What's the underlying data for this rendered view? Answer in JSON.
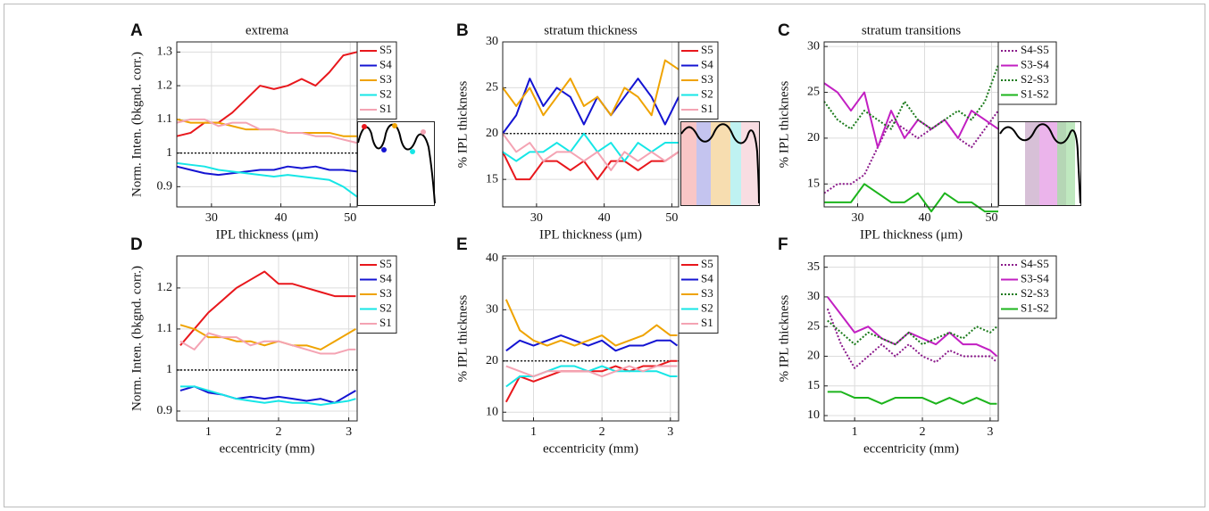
{
  "chart_data": [
    {
      "type": "line",
      "label": "A",
      "title": "extrema",
      "xlabel": "IPL thickness (μm)",
      "ylabel": "Norm. Inten. (bkgnd. corr.)",
      "x": [
        25,
        27,
        29,
        31,
        33,
        35,
        37,
        39,
        41,
        43,
        45,
        47,
        49,
        51
      ],
      "xlim": [
        25,
        51
      ],
      "xticks": [
        30,
        40,
        50
      ],
      "ylim": [
        0.84,
        1.33
      ],
      "yticks": [
        0.9,
        1,
        1.1,
        1.2,
        1.3
      ],
      "grid": true,
      "reference_line": 1,
      "legend": "right-outside",
      "series": [
        {
          "name": "S5",
          "color": "#e8171c",
          "values": [
            1.05,
            1.06,
            1.09,
            1.09,
            1.12,
            1.16,
            1.2,
            1.19,
            1.2,
            1.22,
            1.2,
            1.24,
            1.29,
            1.3
          ]
        },
        {
          "name": "S4",
          "color": "#1414d2",
          "values": [
            0.96,
            0.95,
            0.94,
            0.935,
            0.94,
            0.945,
            0.95,
            0.95,
            0.96,
            0.955,
            0.96,
            0.95,
            0.95,
            0.945
          ]
        },
        {
          "name": "S3",
          "color": "#efa300",
          "values": [
            1.1,
            1.09,
            1.09,
            1.09,
            1.08,
            1.07,
            1.07,
            1.07,
            1.06,
            1.06,
            1.06,
            1.06,
            1.05,
            1.05
          ]
        },
        {
          "name": "S2",
          "color": "#16e6e6",
          "values": [
            0.97,
            0.965,
            0.96,
            0.95,
            0.945,
            0.94,
            0.935,
            0.93,
            0.935,
            0.93,
            0.925,
            0.92,
            0.9,
            0.87
          ]
        },
        {
          "name": "S1",
          "color": "#f4a3b3",
          "values": [
            1.09,
            1.1,
            1.1,
            1.08,
            1.09,
            1.09,
            1.07,
            1.07,
            1.06,
            1.06,
            1.05,
            1.05,
            1.04,
            1.03
          ]
        }
      ]
    },
    {
      "type": "line",
      "label": "B",
      "title": "stratum thickness",
      "xlabel": "IPL thickness (μm)",
      "ylabel": "% IPL thickness",
      "x": [
        25,
        27,
        29,
        31,
        33,
        35,
        37,
        39,
        41,
        43,
        45,
        47,
        49,
        51
      ],
      "xlim": [
        25,
        51
      ],
      "xticks": [
        30,
        40,
        50
      ],
      "ylim": [
        12,
        30
      ],
      "yticks": [
        15,
        20,
        25,
        30
      ],
      "grid": true,
      "reference_line": 20,
      "legend": "right-outside",
      "series": [
        {
          "name": "S5",
          "color": "#e8171c",
          "values": [
            18,
            15,
            15,
            17,
            17,
            16,
            17,
            15,
            17,
            17,
            16,
            17,
            17,
            18
          ]
        },
        {
          "name": "S4",
          "color": "#1414d2",
          "values": [
            20,
            22,
            26,
            23,
            25,
            24,
            21,
            24,
            22,
            24,
            26,
            24,
            21,
            24
          ]
        },
        {
          "name": "S3",
          "color": "#efa300",
          "values": [
            25,
            23,
            25,
            22,
            24,
            26,
            23,
            24,
            22,
            25,
            24,
            22,
            28,
            27
          ]
        },
        {
          "name": "S2",
          "color": "#16e6e6",
          "values": [
            18,
            17,
            18,
            18,
            19,
            18,
            20,
            18,
            19,
            17,
            19,
            18,
            19,
            19
          ]
        },
        {
          "name": "S1",
          "color": "#f4a3b3",
          "values": [
            20,
            18,
            19,
            17,
            18,
            18,
            17,
            18,
            16,
            18,
            17,
            18,
            17,
            18
          ]
        }
      ]
    },
    {
      "type": "line",
      "label": "C",
      "title": "stratum transitions",
      "xlabel": "IPL thickness (μm)",
      "ylabel": "% IPL thickness",
      "x": [
        25,
        27,
        29,
        31,
        33,
        35,
        37,
        39,
        41,
        43,
        45,
        47,
        49,
        51
      ],
      "xlim": [
        25,
        51
      ],
      "xticks": [
        30,
        40,
        50
      ],
      "ylim": [
        12.5,
        30.5
      ],
      "yticks": [
        15,
        20,
        25,
        30
      ],
      "grid": true,
      "legend": "right-outside",
      "series": [
        {
          "name": "S4-S5",
          "color": "#8b1a8b",
          "style": "dotted",
          "values": [
            14,
            15,
            15,
            16,
            19,
            22,
            21,
            20,
            21,
            22,
            20,
            19,
            21,
            23
          ]
        },
        {
          "name": "S3-S4",
          "color": "#c21fc2",
          "values": [
            26,
            25,
            23,
            25,
            19,
            23,
            20,
            22,
            21,
            22,
            20,
            23,
            22,
            21
          ]
        },
        {
          "name": "S2-S3",
          "color": "#1a7a1a",
          "style": "dotted",
          "values": [
            24,
            22,
            21,
            23,
            22,
            21,
            24,
            22,
            21,
            22,
            23,
            22,
            24,
            28
          ]
        },
        {
          "name": "S1-S2",
          "color": "#1cb41c",
          "values": [
            13,
            13,
            13,
            15,
            14,
            13,
            13,
            14,
            12,
            14,
            13,
            13,
            12,
            12
          ]
        }
      ]
    },
    {
      "type": "line",
      "label": "D",
      "xlabel": "eccentricity (mm)",
      "ylabel": "Norm. Inten. (bkgnd. corr.)",
      "x": [
        0.6,
        0.8,
        1,
        1.2,
        1.4,
        1.6,
        1.8,
        2,
        2.2,
        2.4,
        2.6,
        2.8,
        3,
        3.1
      ],
      "xlim": [
        0.55,
        3.12
      ],
      "xticks": [
        1,
        2,
        3
      ],
      "ylim": [
        0.876,
        1.278
      ],
      "yticks": [
        0.9,
        1,
        1.1,
        1.2
      ],
      "grid": true,
      "reference_line": 1,
      "legend": "right-outside",
      "series": [
        {
          "name": "S5",
          "color": "#e8171c",
          "values": [
            1.06,
            1.1,
            1.14,
            1.17,
            1.2,
            1.22,
            1.24,
            1.21,
            1.21,
            1.2,
            1.19,
            1.18,
            1.18,
            1.18
          ]
        },
        {
          "name": "S4",
          "color": "#1414d2",
          "values": [
            0.95,
            0.96,
            0.945,
            0.94,
            0.93,
            0.935,
            0.93,
            0.935,
            0.93,
            0.925,
            0.93,
            0.92,
            0.94,
            0.95
          ]
        },
        {
          "name": "S3",
          "color": "#efa300",
          "values": [
            1.11,
            1.1,
            1.08,
            1.08,
            1.07,
            1.07,
            1.06,
            1.07,
            1.06,
            1.06,
            1.05,
            1.07,
            1.09,
            1.1
          ]
        },
        {
          "name": "S2",
          "color": "#16e6e6",
          "values": [
            0.96,
            0.96,
            0.95,
            0.94,
            0.93,
            0.925,
            0.92,
            0.925,
            0.92,
            0.92,
            0.915,
            0.92,
            0.925,
            0.93
          ]
        },
        {
          "name": "S1",
          "color": "#f4a3b3",
          "values": [
            1.07,
            1.05,
            1.09,
            1.08,
            1.08,
            1.06,
            1.07,
            1.07,
            1.06,
            1.05,
            1.04,
            1.04,
            1.05,
            1.05
          ]
        }
      ]
    },
    {
      "type": "line",
      "label": "E",
      "xlabel": "eccentricity (mm)",
      "ylabel": "% IPL thickness",
      "x": [
        0.6,
        0.8,
        1,
        1.2,
        1.4,
        1.6,
        1.8,
        2,
        2.2,
        2.4,
        2.6,
        2.8,
        3,
        3.1
      ],
      "xlim": [
        0.55,
        3.12
      ],
      "xticks": [
        1,
        2,
        3
      ],
      "ylim": [
        8.3,
        40.5
      ],
      "yticks": [
        10,
        20,
        30,
        40
      ],
      "grid": true,
      "reference_line": 20,
      "legend": "right-outside",
      "series": [
        {
          "name": "S5",
          "color": "#e8171c",
          "values": [
            12,
            17,
            16,
            17,
            18,
            18,
            18,
            18,
            19,
            18,
            19,
            19,
            20,
            20
          ]
        },
        {
          "name": "S4",
          "color": "#1414d2",
          "values": [
            22,
            24,
            23,
            24,
            25,
            24,
            23,
            24,
            22,
            23,
            23,
            24,
            24,
            23
          ]
        },
        {
          "name": "S3",
          "color": "#efa300",
          "values": [
            32,
            26,
            24,
            23,
            24,
            23,
            24,
            25,
            23,
            24,
            25,
            27,
            25,
            25
          ]
        },
        {
          "name": "S2",
          "color": "#16e6e6",
          "values": [
            15,
            17,
            17,
            18,
            19,
            19,
            18,
            19,
            18,
            18,
            18,
            18,
            17,
            17
          ]
        },
        {
          "name": "S1",
          "color": "#f4a3b3",
          "values": [
            19,
            18,
            17,
            18,
            18,
            18,
            18,
            17,
            18,
            19,
            18,
            19,
            19,
            19
          ]
        }
      ]
    },
    {
      "type": "line",
      "label": "F",
      "xlabel": "eccentricity (mm)",
      "ylabel": "% IPL thickness",
      "x": [
        0.6,
        0.8,
        1,
        1.2,
        1.4,
        1.6,
        1.8,
        2,
        2.2,
        2.4,
        2.6,
        2.8,
        3,
        3.1
      ],
      "xlim": [
        0.55,
        3.12
      ],
      "xticks": [
        1,
        2,
        3
      ],
      "ylim": [
        9.1,
        36.9
      ],
      "yticks": [
        10,
        15,
        20,
        25,
        30,
        35
      ],
      "grid": true,
      "legend": "right-outside",
      "series": [
        {
          "name": "S4-S5",
          "color": "#8b1a8b",
          "style": "dotted",
          "values": [
            28,
            22,
            18,
            20,
            22,
            20,
            22,
            20,
            19,
            21,
            20,
            20,
            20,
            19
          ]
        },
        {
          "name": "S3-S4",
          "color": "#c21fc2",
          "values": [
            30,
            27,
            24,
            25,
            23,
            22,
            24,
            23,
            22,
            24,
            22,
            22,
            21,
            20
          ]
        },
        {
          "name": "S2-S3",
          "color": "#1a7a1a",
          "style": "dotted",
          "values": [
            26,
            24,
            22,
            24,
            23,
            22,
            24,
            22,
            23,
            24,
            23,
            25,
            24,
            25
          ]
        },
        {
          "name": "S1-S2",
          "color": "#1cb41c",
          "values": [
            14,
            14,
            13,
            13,
            12,
            13,
            13,
            13,
            12,
            13,
            12,
            13,
            12,
            12
          ]
        }
      ]
    }
  ]
}
